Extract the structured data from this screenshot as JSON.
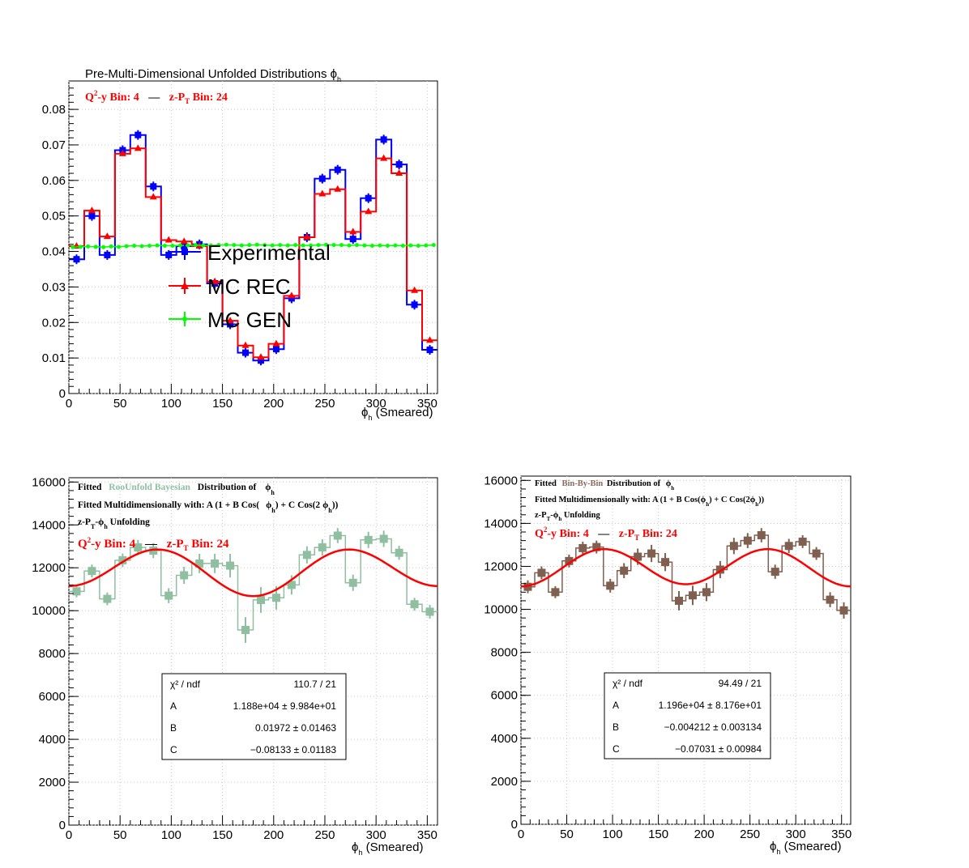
{
  "panels": [
    {
      "id": "top",
      "chart_data": {
        "type": "line",
        "title": "Pre-Multi-Dimensional Unfolded Distributions ϕ",
        "title_sub": "h",
        "bin_label": {
          "q2y": "Q",
          "q2y_sup": "2",
          "q2y_rest": "-y Bin: 4",
          "sep": "—",
          "zpt": "z-P",
          "zpt_sub": "T",
          "zpt_rest": " Bin: 24"
        },
        "xlabel": "ϕ",
        "xlabel_sub": "h",
        "xlabel_rest": " (Smeared)",
        "xlim": [
          0,
          360
        ],
        "ylim": [
          0,
          0.088
        ],
        "x_ticks": [
          0,
          50,
          100,
          150,
          200,
          250,
          300,
          350
        ],
        "y_ticks": [
          0,
          0.01,
          0.02,
          0.03,
          0.04,
          0.05,
          0.06,
          0.07,
          0.08
        ],
        "y_tick_labels": [
          "0",
          "0.01",
          "0.02",
          "0.03",
          "0.04",
          "0.05",
          "0.06",
          "0.07",
          "0.08"
        ],
        "bin_width": 15,
        "legend": [
          "Experimental",
          "MC REC",
          "MC GEN"
        ],
        "legend_position": "center",
        "series": [
          {
            "name": "Experimental",
            "color": "#0000ff",
            "marker": "square",
            "values": [
              0.0378,
              0.05,
              0.039,
              0.0685,
              0.0728,
              0.0583,
              0.039,
              0.0415,
              0.042,
              0.031,
              0.0195,
              0.0115,
              0.0093,
              0.0125,
              0.0268,
              0.044,
              0.0605,
              0.063,
              0.0435,
              0.055,
              0.0715,
              0.0645,
              0.025,
              0.0123
            ]
          },
          {
            "name": "MC REC",
            "color": "#ff0000",
            "marker": "triangle",
            "values": [
              0.0415,
              0.0515,
              0.0442,
              0.0675,
              0.069,
              0.0553,
              0.0432,
              0.0428,
              0.0415,
              0.0315,
              0.0205,
              0.0135,
              0.0102,
              0.014,
              0.0275,
              0.044,
              0.0562,
              0.0575,
              0.0455,
              0.0512,
              0.0662,
              0.062,
              0.029,
              0.015
            ]
          },
          {
            "name": "MC GEN",
            "color": "#00ff00",
            "marker": "circle",
            "x": [
              3.75,
              11.25,
              18.75,
              26.25,
              33.75,
              41.25,
              48.75,
              56.25,
              63.75,
              71.25,
              78.75,
              86.25,
              93.75,
              101.25,
              108.75,
              116.25,
              123.75,
              131.25,
              138.75,
              146.25,
              153.75,
              161.25,
              168.75,
              176.25,
              183.75,
              191.25,
              198.75,
              206.25,
              213.75,
              221.25,
              228.75,
              236.25,
              243.75,
              251.25,
              258.75,
              266.25,
              273.75,
              281.25,
              288.75,
              296.25,
              303.75,
              311.25,
              318.75,
              326.25,
              333.75,
              341.25,
              348.75,
              356.25
            ],
            "values": [
              0.0412,
              0.0413,
              0.0414,
              0.0413,
              0.0412,
              0.0414,
              0.0413,
              0.0415,
              0.0416,
              0.0415,
              0.0416,
              0.0417,
              0.0416,
              0.0416,
              0.0417,
              0.0417,
              0.0418,
              0.0417,
              0.0417,
              0.0418,
              0.0419,
              0.0418,
              0.0417,
              0.0418,
              0.0419,
              0.0418,
              0.0417,
              0.0418,
              0.0417,
              0.0418,
              0.0417,
              0.0417,
              0.0418,
              0.0419,
              0.0418,
              0.0418,
              0.0417,
              0.0418,
              0.0417,
              0.0416,
              0.0417,
              0.0416,
              0.0417,
              0.0416,
              0.0417,
              0.0416,
              0.0417,
              0.0418
            ]
          }
        ]
      }
    },
    {
      "id": "bottom-left",
      "chart_data": {
        "type": "line",
        "title_lines": [
          [
            "Fitted ",
            "RooUnfold Bayesian",
            " Distribution of ",
            "ϕ",
            "h"
          ],
          [
            "Fitted Multidimensionally with: A (1 + B Cos(",
            "ϕ",
            "h",
            ") + C Cos(2 ",
            "ϕ",
            "h",
            "))"
          ],
          [
            "z-P",
            "T",
            "-ϕ",
            "h",
            " Unfolding"
          ]
        ],
        "method_color": "#8fbfa0",
        "bin_label": {
          "q2y": "Q",
          "q2y_sup": "2",
          "q2y_rest": "-y Bin: 4",
          "sep": "—",
          "zpt": "z-P",
          "zpt_sub": "T",
          "zpt_rest": " Bin: 24"
        },
        "xlabel": "ϕ",
        "xlabel_sub": "h",
        "xlabel_rest": " (Smeared)",
        "xlim": [
          0,
          360
        ],
        "ylim": [
          0,
          16200
        ],
        "x_ticks": [
          0,
          50,
          100,
          150,
          200,
          250,
          300,
          350
        ],
        "y_ticks": [
          0,
          2000,
          4000,
          6000,
          8000,
          10000,
          12000,
          14000,
          16000
        ],
        "bin_width": 15,
        "series": [
          {
            "name": "RooUnfold Bayesian",
            "color": "#8fbfa0",
            "values": [
              10900,
              11850,
              10550,
              12350,
              12950,
              12800,
              10700,
              11650,
              12200,
              12200,
              12100,
              9100,
              10500,
              10600,
              11200,
              12600,
              12950,
              13500,
              11300,
              13300,
              13350,
              12700,
              10300,
              9950
            ],
            "errors": [
              280,
              300,
              300,
              320,
              350,
              350,
              350,
              400,
              450,
              450,
              550,
              600,
              600,
              550,
              450,
              400,
              380,
              350,
              380,
              380,
              380,
              330,
              300,
              320
            ]
          },
          {
            "name": "Fit",
            "color": "#ff0000",
            "fit": {
              "A": 11880,
              "B": 0.01972,
              "C": -0.08133
            }
          }
        ],
        "stats": {
          "rows": [
            {
              "k": "χ² / ndf",
              "v": "110.7 / 21"
            },
            {
              "k": "A",
              "v": "1.188e+04 ± 9.984e+01"
            },
            {
              "k": "B",
              "v": "0.01972 ± 0.01463"
            },
            {
              "k": "C",
              "v": "−0.08133 ± 0.01183"
            }
          ]
        }
      }
    },
    {
      "id": "bottom-right",
      "chart_data": {
        "type": "line",
        "title_lines": [
          [
            "Fitted ",
            "Bin-By-Bin",
            " Distribution of ",
            "ϕ",
            "h"
          ],
          [
            "Fitted Multidimensionally with: A (1 + B Cos(",
            "ϕ",
            "h",
            ") + C Cos(2",
            "ϕ",
            "h",
            "))"
          ],
          [
            "z-P",
            "T",
            "-ϕ",
            "h",
            " Unfolding"
          ]
        ],
        "method_color": "#8b6a5a",
        "bin_label": {
          "q2y": "Q",
          "q2y_sup": "2",
          "q2y_rest": "-y Bin: 4",
          "sep": "—",
          "zpt": "z-P",
          "zpt_sub": "T",
          "zpt_rest": " Bin: 24"
        },
        "xlabel": "ϕ",
        "xlabel_sub": "h",
        "xlabel_rest": " (Smeared)",
        "xlim": [
          0,
          360
        ],
        "ylim": [
          0,
          16200
        ],
        "x_ticks": [
          0,
          50,
          100,
          150,
          200,
          250,
          300,
          350
        ],
        "y_ticks": [
          0,
          2000,
          4000,
          6000,
          8000,
          10000,
          12000,
          14000,
          16000
        ],
        "bin_width": 15,
        "series": [
          {
            "name": "Bin-By-Bin",
            "color": "#7f5f4f",
            "values": [
              11050,
              11700,
              10800,
              12250,
              12850,
              12900,
              11100,
              11800,
              12450,
              12600,
              12200,
              10400,
              10650,
              10800,
              11850,
              12950,
              13200,
              13450,
              11750,
              12950,
              13150,
              12600,
              10450,
              9950
            ],
            "errors": [
              300,
              300,
              280,
              300,
              300,
              300,
              320,
              350,
              380,
              400,
              420,
              450,
              450,
              420,
              400,
              380,
              350,
              330,
              330,
              330,
              300,
              300,
              350,
              380
            ]
          },
          {
            "name": "Fit",
            "color": "#ff0000",
            "fit": {
              "A": 11960,
              "B": -0.004212,
              "C": -0.07031
            }
          }
        ],
        "stats": {
          "rows": [
            {
              "k": "χ² / ndf",
              "v": "94.49 / 21"
            },
            {
              "k": "A",
              "v": "1.196e+04 ± 8.176e+01"
            },
            {
              "k": "B",
              "v": "−0.004212 ± 0.003134"
            },
            {
              "k": "C",
              "v": "−0.07031 ± 0.00984"
            }
          ]
        }
      }
    }
  ]
}
